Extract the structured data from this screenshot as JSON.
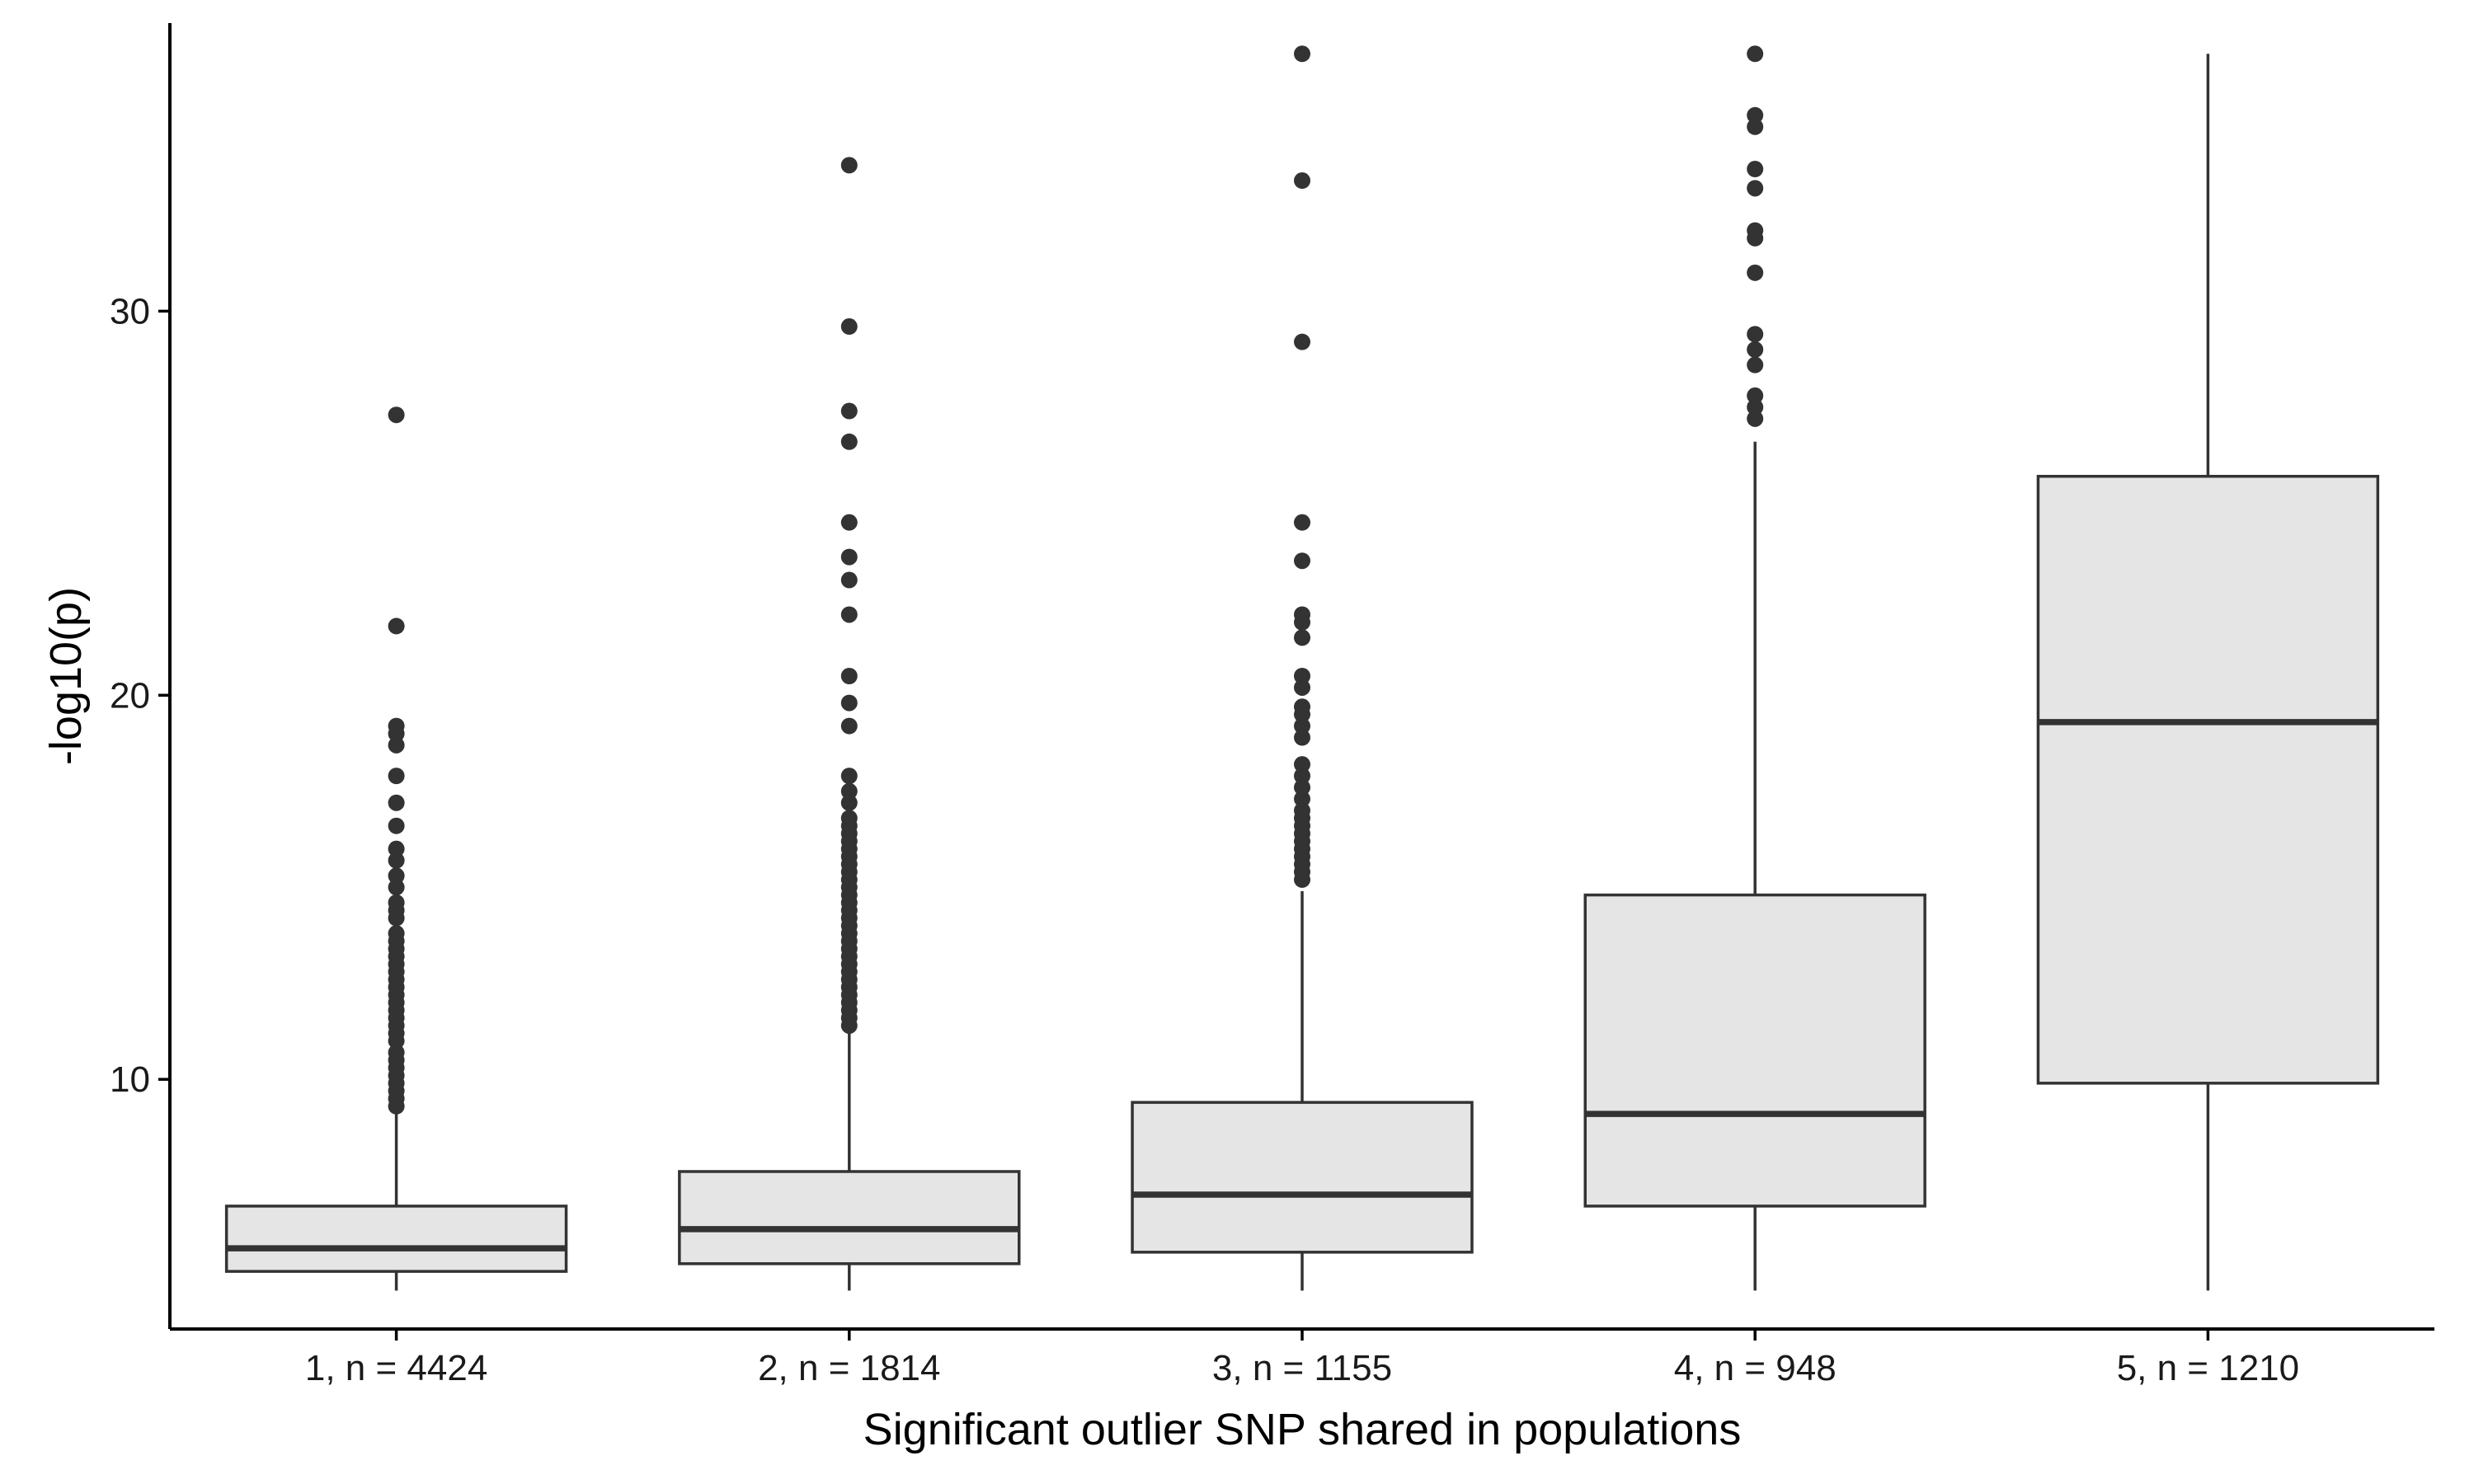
{
  "chart_data": {
    "type": "boxplot",
    "title": "",
    "xlabel": "Significant outlier SNP shared in populations",
    "ylabel": "-log10(p)",
    "ylim": [
      3.5,
      37.5
    ],
    "yticks": [
      10,
      20,
      30
    ],
    "ytick_labels": [
      "10",
      "20",
      "30"
    ],
    "grid": false,
    "box_fill": "#e5e5e5",
    "line_color": "#333333",
    "point_color": "#333333",
    "axis_color": "#000000",
    "categories": [
      "1, n = 4424",
      "2, n = 1814",
      "3, n = 1155",
      "4, n = 948",
      "5, n = 1210"
    ],
    "boxes": [
      {
        "category": "1, n = 4424",
        "whisker_low": 4.5,
        "q1": 5.0,
        "median": 5.6,
        "q3": 6.7,
        "whisker_high": 9.2,
        "outliers": [
          9.3,
          9.5,
          9.7,
          9.9,
          10.1,
          10.3,
          10.5,
          10.7,
          11.0,
          11.2,
          11.4,
          11.6,
          11.8,
          12.0,
          12.2,
          12.4,
          12.6,
          12.8,
          13.0,
          13.2,
          13.4,
          13.6,
          13.8,
          14.2,
          14.4,
          14.6,
          15.0,
          15.3,
          15.7,
          16.0,
          16.6,
          17.2,
          17.9,
          18.7,
          19.0,
          19.2,
          21.8,
          27.3
        ]
      },
      {
        "category": "2, n = 1814",
        "whisker_low": 4.5,
        "q1": 5.2,
        "median": 6.1,
        "q3": 7.6,
        "whisker_high": 11.3,
        "outliers": [
          11.4,
          11.6,
          11.8,
          12.0,
          12.2,
          12.4,
          12.6,
          12.8,
          13.0,
          13.2,
          13.4,
          13.6,
          13.8,
          14.0,
          14.2,
          14.4,
          14.6,
          14.8,
          15.0,
          15.2,
          15.4,
          15.6,
          15.8,
          16.0,
          16.2,
          16.4,
          16.6,
          16.8,
          17.2,
          17.5,
          17.9,
          19.2,
          19.8,
          20.5,
          22.1,
          23.0,
          23.6,
          24.5,
          26.6,
          27.4,
          29.6,
          33.8
        ]
      },
      {
        "category": "3, n = 1155",
        "whisker_low": 4.5,
        "q1": 5.5,
        "median": 7.0,
        "q3": 9.4,
        "whisker_high": 14.9,
        "outliers": [
          15.2,
          15.4,
          15.6,
          15.8,
          16.0,
          16.2,
          16.4,
          16.6,
          16.8,
          17.0,
          17.3,
          17.6,
          17.9,
          18.2,
          18.9,
          19.2,
          19.5,
          19.7,
          20.2,
          20.5,
          21.5,
          21.9,
          22.1,
          23.5,
          24.5,
          29.2,
          33.4,
          36.7
        ]
      },
      {
        "category": "4, n = 948",
        "whisker_low": 4.5,
        "q1": 6.7,
        "median": 9.1,
        "q3": 14.8,
        "whisker_high": 26.6,
        "outliers": [
          27.2,
          27.5,
          27.8,
          28.6,
          29.0,
          29.4,
          31.0,
          31.9,
          32.1,
          33.2,
          33.7,
          34.8,
          35.1,
          36.7
        ]
      },
      {
        "category": "5, n = 1210",
        "whisker_low": 4.5,
        "q1": 9.9,
        "median": 19.3,
        "q3": 25.7,
        "whisker_high": 36.7,
        "outliers": []
      }
    ]
  }
}
